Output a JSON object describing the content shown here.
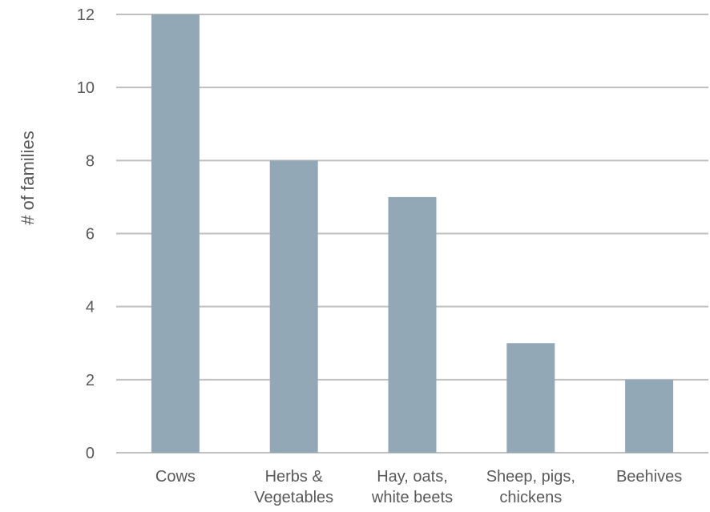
{
  "chart_data": {
    "type": "bar",
    "title": "",
    "xlabel": "",
    "ylabel": "# of families",
    "categories": [
      [
        "Cows"
      ],
      [
        "Herbs &",
        "Vegetables"
      ],
      [
        "Hay, oats,",
        "white beets"
      ],
      [
        "Sheep, pigs,",
        "chickens"
      ],
      [
        "Beehives"
      ]
    ],
    "values": [
      12,
      8,
      7,
      3,
      2
    ],
    "ylim": [
      0,
      12
    ],
    "yticks": [
      0,
      2,
      4,
      6,
      8,
      10,
      12
    ],
    "grid": true,
    "legend": "none",
    "colors": {
      "bar": "#93a8b6",
      "grid": "#bfbfbf",
      "text": "#595959"
    }
  }
}
